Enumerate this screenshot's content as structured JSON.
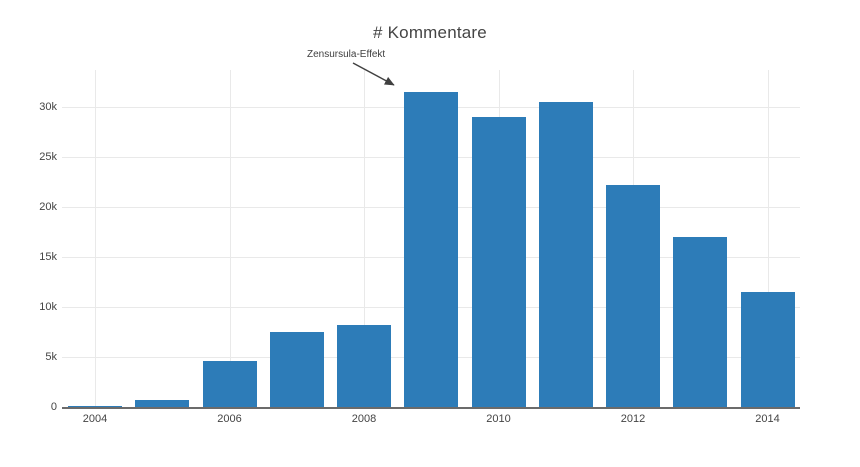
{
  "title": "# Kommentare",
  "annotation": {
    "label": "Zensursula-Effekt"
  },
  "colors": {
    "bar": "#2d7cb8",
    "grid": "#e9e9e9",
    "axis_line": "#6b6b6b",
    "text": "#444444",
    "annotation_arrow": "#404040",
    "background": "#ffffff"
  },
  "chart_data": {
    "type": "bar",
    "title": "# Kommentare",
    "xlabel": "",
    "ylabel": "",
    "categories": [
      "2004",
      "2005",
      "2006",
      "2007",
      "2008",
      "2009",
      "2010",
      "2011",
      "2012",
      "2013",
      "2014"
    ],
    "values": [
      100,
      750,
      4600,
      7500,
      8200,
      31600,
      29000,
      30550,
      22200,
      17000,
      11500
    ],
    "x_tick_labels": [
      "2004",
      "2006",
      "2008",
      "2010",
      "2012",
      "2014"
    ],
    "y_tick_labels": [
      "0",
      "5k",
      "10k",
      "15k",
      "20k",
      "25k",
      "30k"
    ],
    "y_tick_values": [
      0,
      5000,
      10000,
      15000,
      20000,
      25000,
      30000
    ],
    "ylim": [
      0,
      33750
    ],
    "grid": true,
    "legend": "none",
    "annotations": [
      {
        "text": "Zensursula-Effekt",
        "target_category": "2009",
        "target_value": 31600
      }
    ]
  }
}
